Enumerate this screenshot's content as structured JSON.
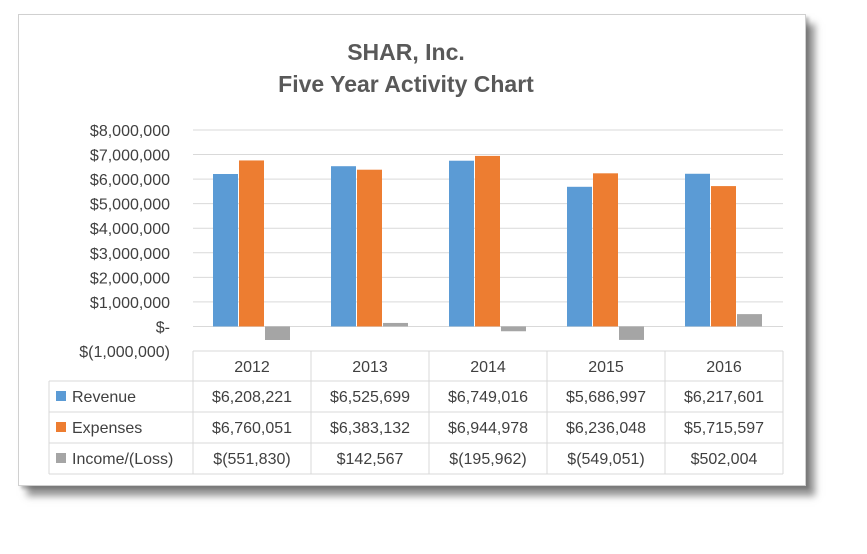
{
  "chart_data": {
    "type": "bar",
    "title": "SHAR, Inc.",
    "subtitle": "Five Year Activity Chart",
    "categories": [
      "2012",
      "2013",
      "2014",
      "2015",
      "2016"
    ],
    "ylim": [
      -1000000,
      8000000
    ],
    "yticks": [
      8000000,
      7000000,
      6000000,
      5000000,
      4000000,
      3000000,
      2000000,
      1000000,
      0,
      -1000000
    ],
    "ytick_labels": [
      "$8,000,000",
      "$7,000,000",
      "$6,000,000",
      "$5,000,000",
      "$4,000,000",
      "$3,000,000",
      "$2,000,000",
      "$1,000,000",
      "$-",
      "$(1,000,000)"
    ],
    "grid": true,
    "legend": "data-table",
    "series": [
      {
        "name": "Revenue",
        "color": "#5b9bd5",
        "values": [
          6208221,
          6525699,
          6749016,
          5686997,
          6217601
        ],
        "labels": [
          "$6,208,221",
          "$6,525,699",
          "$6,749,016",
          "$5,686,997",
          "$6,217,601"
        ]
      },
      {
        "name": "Expenses",
        "color": "#ed7d31",
        "values": [
          6760051,
          6383132,
          6944978,
          6236048,
          5715597
        ],
        "labels": [
          "$6,760,051",
          "$6,383,132",
          "$6,944,978",
          "$6,236,048",
          "$5,715,597"
        ]
      },
      {
        "name": "Income/(Loss)",
        "color": "#a5a5a5",
        "values": [
          -551830,
          142567,
          -195962,
          -549051,
          502004
        ],
        "labels": [
          "$(551,830)",
          "$142,567",
          "$(195,962)",
          "$(549,051)",
          "$502,004"
        ]
      }
    ]
  }
}
